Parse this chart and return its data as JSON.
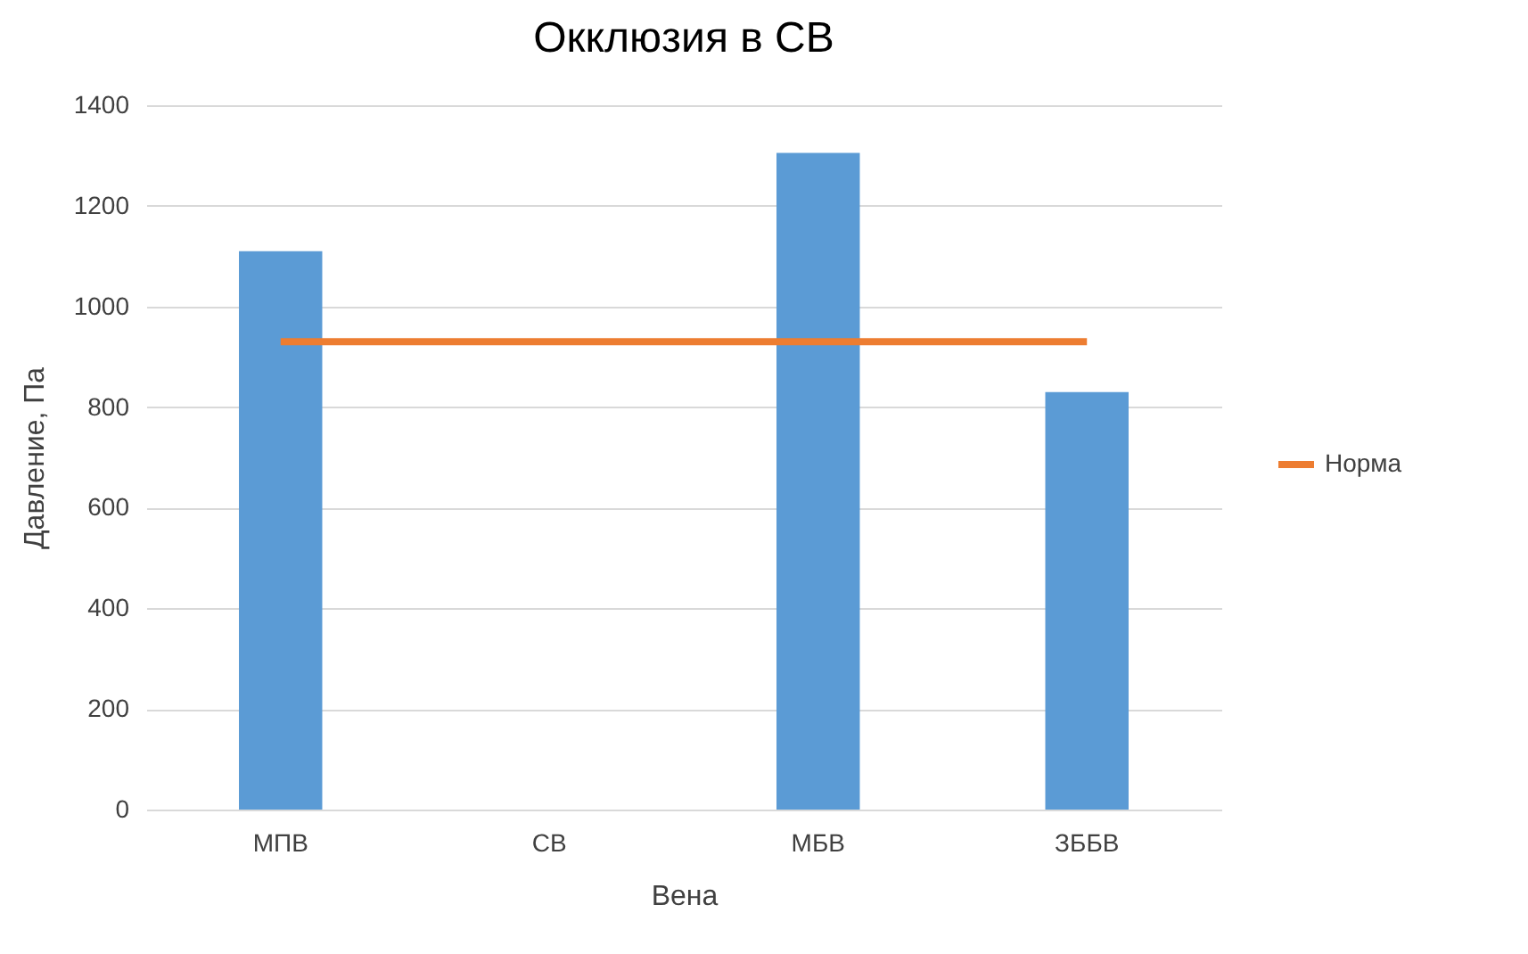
{
  "chart_data": {
    "type": "bar",
    "title": "Окклюзия в СВ",
    "xlabel": "Вена",
    "ylabel": "Давление, Па",
    "categories": [
      "МПВ",
      "СВ",
      "МБВ",
      "ЗББВ"
    ],
    "series": [
      {
        "color": "#5b9bd5",
        "values": [
          1110,
          null,
          1305,
          830
        ]
      },
      {
        "name": "Норма",
        "type": "line",
        "color": "#ed7d31",
        "values": [
          930,
          930,
          930,
          930
        ]
      }
    ],
    "ylim": [
      0,
      1400
    ],
    "yticks": [
      0,
      200,
      400,
      600,
      800,
      1000,
      1200,
      1400
    ],
    "grid": "y",
    "legend": "right"
  }
}
